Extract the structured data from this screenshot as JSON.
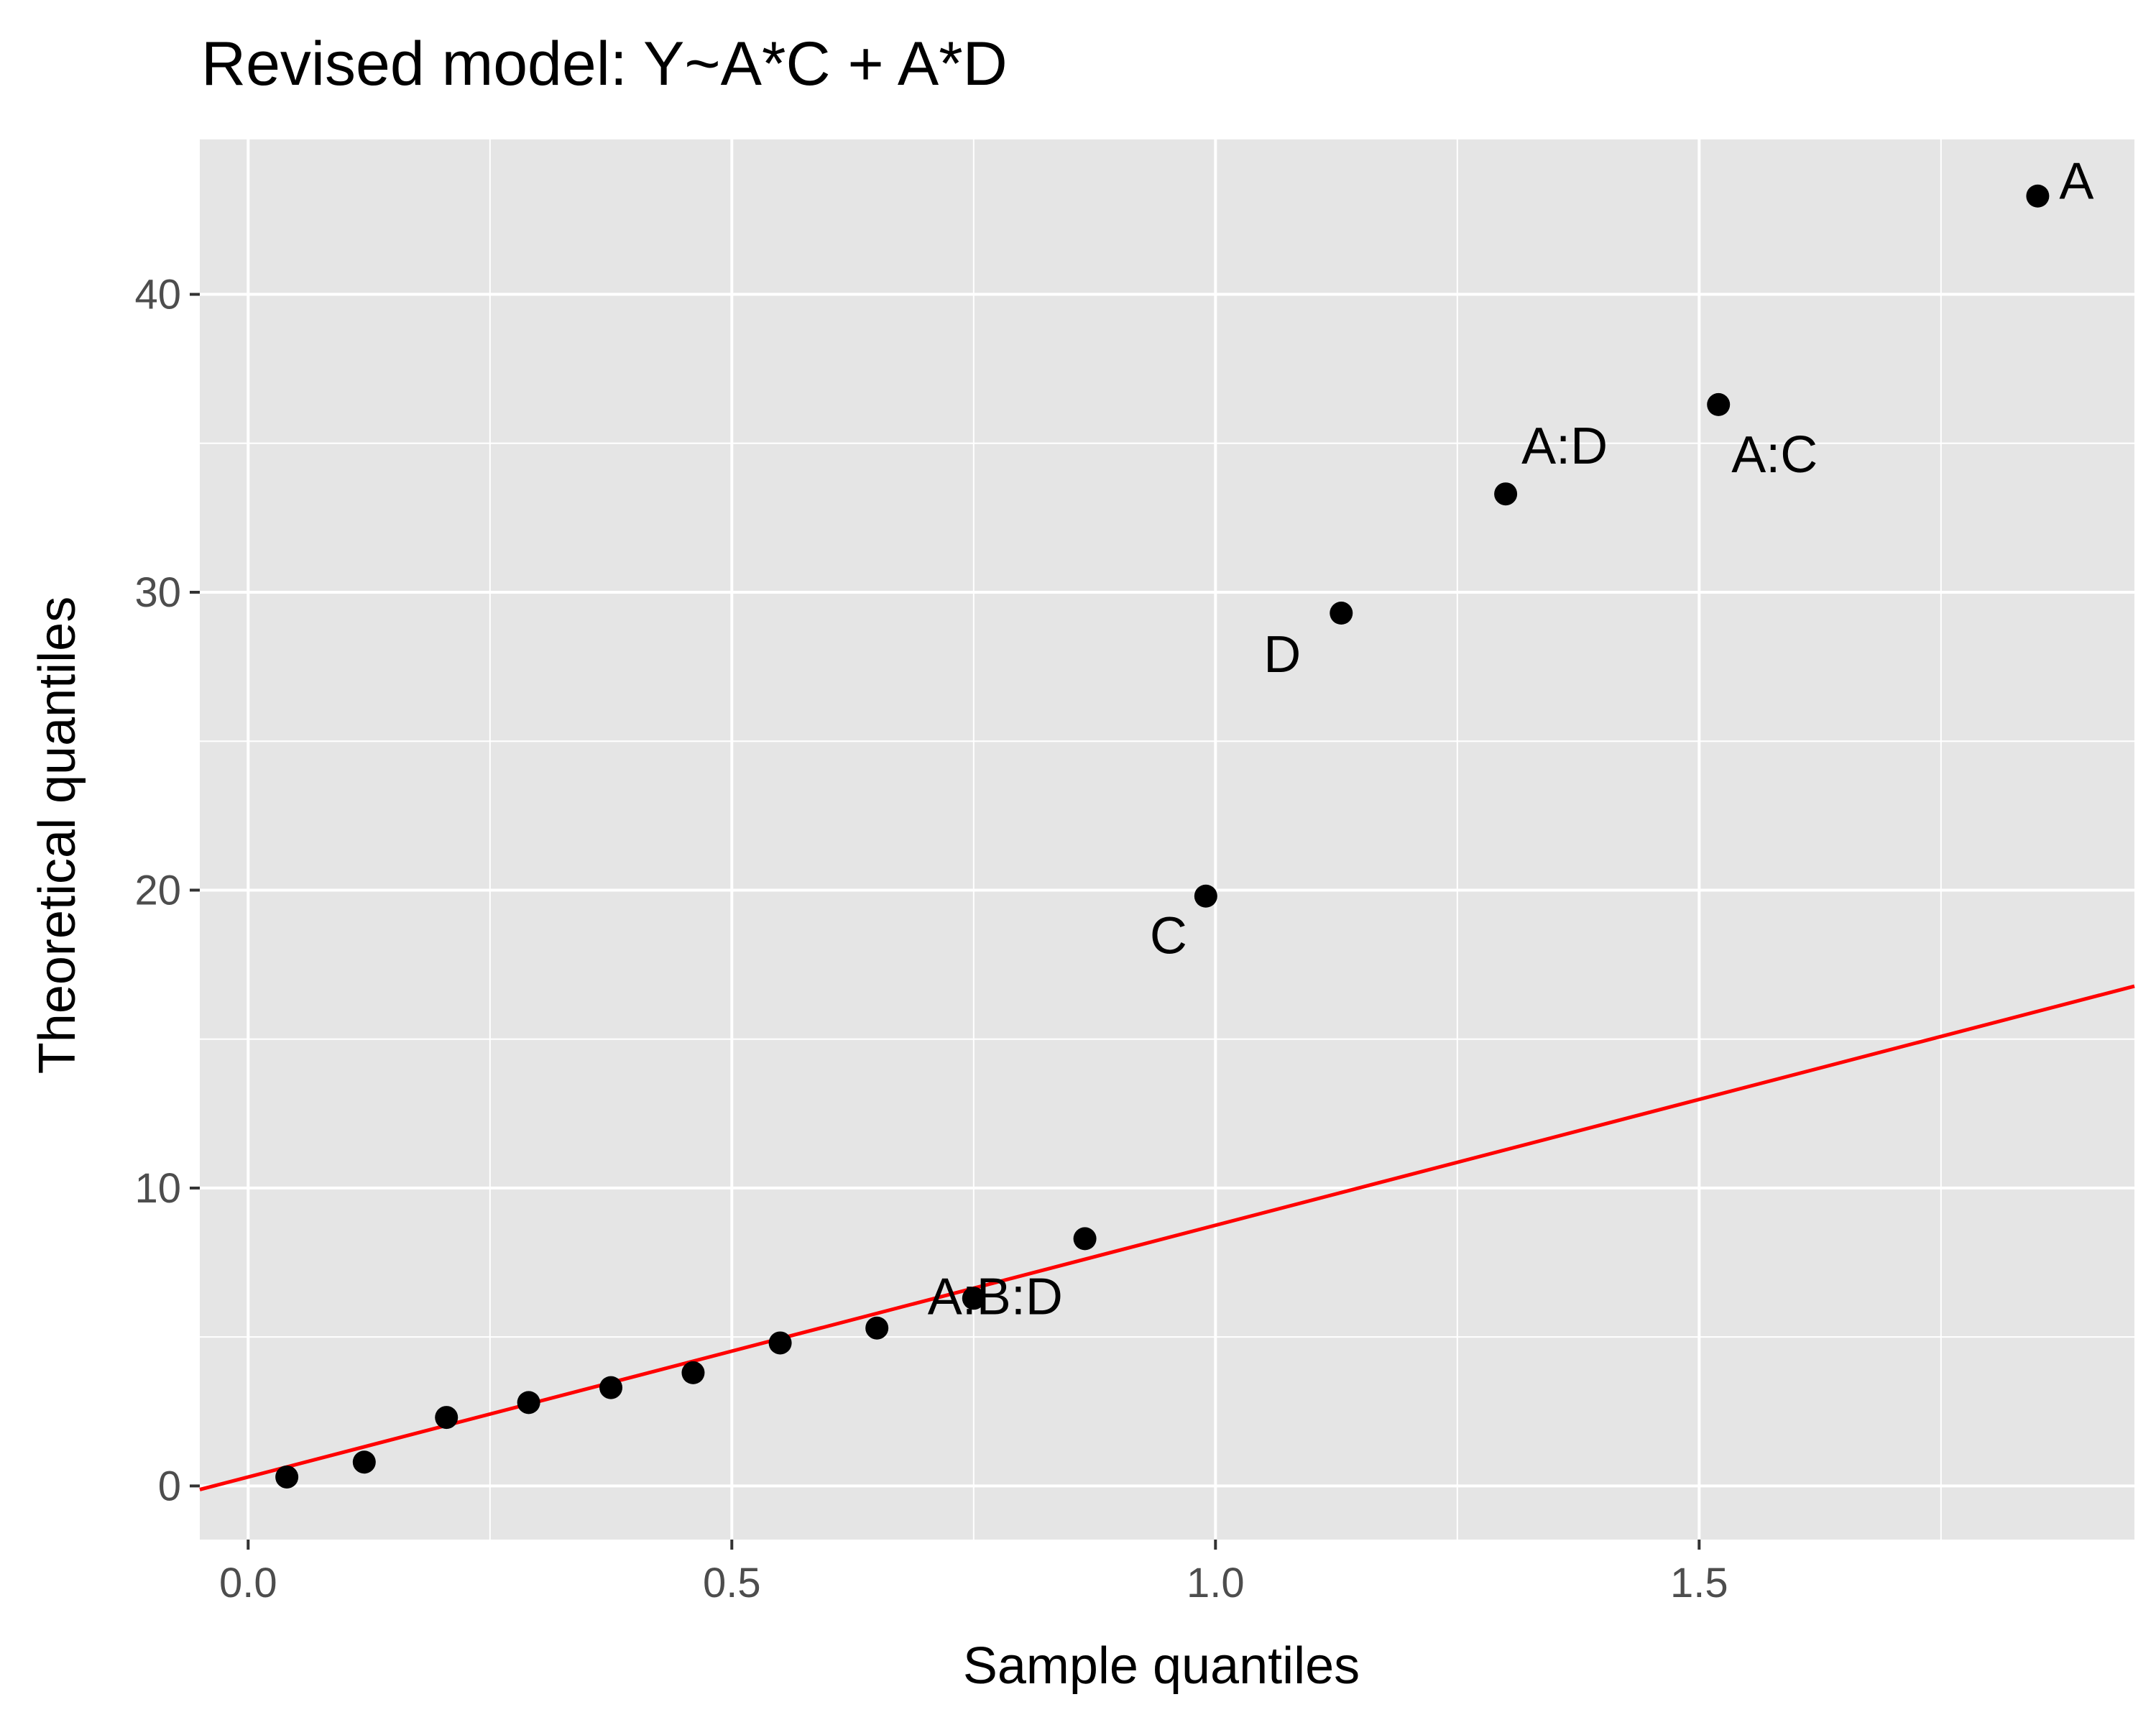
{
  "chart_data": {
    "type": "scatter",
    "title": "Revised model: Y~A*C + A*D",
    "xlabel": "Sample quantiles",
    "ylabel": "Theoretical quantiles",
    "xlim": [
      -0.05,
      1.95
    ],
    "ylim": [
      -1.8,
      45.2
    ],
    "x_ticks": [
      0.0,
      0.5,
      1.0,
      1.5
    ],
    "x_tick_labels": [
      "0.0",
      "0.5",
      "1.0",
      "1.5"
    ],
    "y_ticks": [
      0,
      10,
      20,
      30,
      40
    ],
    "y_tick_labels": [
      "0",
      "10",
      "20",
      "30",
      "40"
    ],
    "x_minor_ticks": [
      0.25,
      0.75,
      1.25,
      1.75
    ],
    "y_minor_ticks": [
      5,
      15,
      25,
      35
    ],
    "grid": true,
    "panel_background": "#e5e5e5",
    "point_color": "#000000",
    "line_color": "#ff0000",
    "points": [
      {
        "x": 0.04,
        "y": 0.3,
        "label": ""
      },
      {
        "x": 0.12,
        "y": 0.8,
        "label": ""
      },
      {
        "x": 0.205,
        "y": 2.3,
        "label": ""
      },
      {
        "x": 0.29,
        "y": 2.8,
        "label": ""
      },
      {
        "x": 0.375,
        "y": 3.3,
        "label": ""
      },
      {
        "x": 0.46,
        "y": 3.8,
        "label": ""
      },
      {
        "x": 0.55,
        "y": 4.8,
        "label": ""
      },
      {
        "x": 0.65,
        "y": 5.3,
        "label": ""
      },
      {
        "x": 0.75,
        "y": 6.3,
        "label": "A:B:D"
      },
      {
        "x": 0.865,
        "y": 8.3,
        "label": ""
      },
      {
        "x": 0.99,
        "y": 19.8,
        "label": "C"
      },
      {
        "x": 1.13,
        "y": 29.3,
        "label": "D"
      },
      {
        "x": 1.3,
        "y": 33.3,
        "label": "A:D"
      },
      {
        "x": 1.52,
        "y": 36.3,
        "label": "A:C"
      },
      {
        "x": 1.85,
        "y": 43.3,
        "label": "A"
      }
    ],
    "reference_line": {
      "intercept": 0.3,
      "slope": 8.45
    }
  }
}
